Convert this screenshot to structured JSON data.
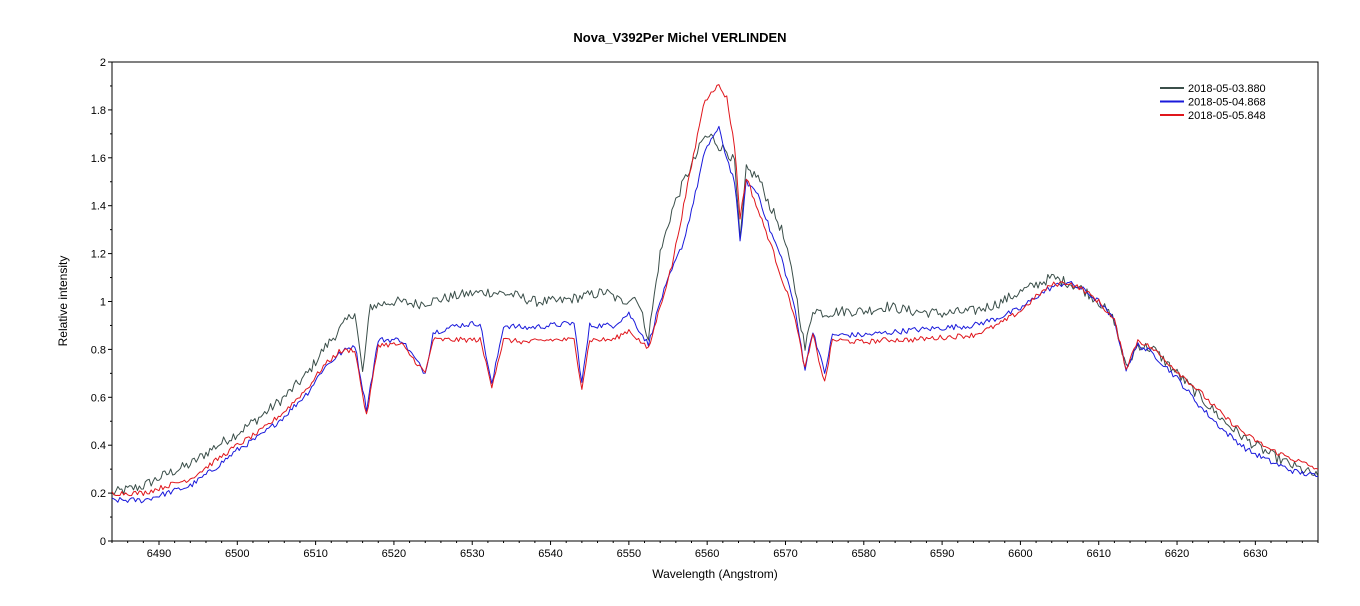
{
  "chart_data": {
    "type": "line",
    "title": "Nova_V392Per   Michel VERLINDEN",
    "xlabel": "Wavelength (Angstrom)",
    "ylabel": "Relative intensity",
    "xlim": [
      6484,
      6638
    ],
    "ylim": [
      0,
      2
    ],
    "xticks": [
      6490,
      6500,
      6510,
      6520,
      6530,
      6540,
      6550,
      6560,
      6570,
      6580,
      6590,
      6600,
      6610,
      6620,
      6630
    ],
    "xtick_labels": [
      "6490",
      "6500",
      "6510",
      "6520",
      "6530",
      "6540",
      "6550",
      "6560",
      "6570",
      "6580",
      "6590",
      "6600",
      "6610",
      "6620",
      "6630"
    ],
    "yticks": [
      0,
      0.2,
      0.4,
      0.6,
      0.8,
      1,
      1.2,
      1.4,
      1.6,
      1.8,
      2
    ],
    "ytick_labels": [
      "0",
      "0.2",
      "0.4",
      "0.6",
      "0.8",
      "1",
      "1.2",
      "1.4",
      "1.6",
      "1.8",
      "2"
    ],
    "grid": false,
    "legend_position": "top-right",
    "series": [
      {
        "name": "2018-05-03.880",
        "color": "#3b4f4a",
        "points": [
          [
            6484,
            0.2
          ],
          [
            6488,
            0.23
          ],
          [
            6491,
            0.28
          ],
          [
            6494,
            0.32
          ],
          [
            6497,
            0.39
          ],
          [
            6500,
            0.45
          ],
          [
            6503,
            0.52
          ],
          [
            6506,
            0.6
          ],
          [
            6509,
            0.7
          ],
          [
            6511,
            0.8
          ],
          [
            6513,
            0.88
          ],
          [
            6515,
            0.96
          ],
          [
            6516,
            0.7
          ],
          [
            6517,
            0.98
          ],
          [
            6520,
            1.0
          ],
          [
            6523,
            0.99
          ],
          [
            6526,
            1.01
          ],
          [
            6529,
            1.03
          ],
          [
            6532,
            1.04
          ],
          [
            6535,
            1.03
          ],
          [
            6538,
            1.0
          ],
          [
            6541,
            1.0
          ],
          [
            6544,
            1.02
          ],
          [
            6547,
            1.04
          ],
          [
            6549,
            1.0
          ],
          [
            6551,
            1.02
          ],
          [
            6552.5,
            0.85
          ],
          [
            6554,
            1.2
          ],
          [
            6555.5,
            1.38
          ],
          [
            6557,
            1.5
          ],
          [
            6558.5,
            1.6
          ],
          [
            6559.5,
            1.68
          ],
          [
            6560.5,
            1.69
          ],
          [
            6561.5,
            1.65
          ],
          [
            6562.5,
            1.63
          ],
          [
            6563.5,
            1.58
          ],
          [
            6564.2,
            1.25
          ],
          [
            6565,
            1.55
          ],
          [
            6566.5,
            1.52
          ],
          [
            6568,
            1.4
          ],
          [
            6569.5,
            1.3
          ],
          [
            6571,
            1.1
          ],
          [
            6572.5,
            0.8
          ],
          [
            6573.5,
            0.97
          ],
          [
            6575,
            0.95
          ],
          [
            6577,
            0.96
          ],
          [
            6580,
            0.96
          ],
          [
            6583,
            0.98
          ],
          [
            6586,
            0.96
          ],
          [
            6590,
            0.95
          ],
          [
            6594,
            0.96
          ],
          [
            6597,
            0.99
          ],
          [
            6600,
            1.04
          ],
          [
            6602,
            1.07
          ],
          [
            6604,
            1.1
          ],
          [
            6606,
            1.08
          ],
          [
            6608,
            1.05
          ],
          [
            6610,
            1.0
          ],
          [
            6612,
            0.92
          ],
          [
            6613.5,
            0.72
          ],
          [
            6615,
            0.82
          ],
          [
            6617,
            0.8
          ],
          [
            6620,
            0.7
          ],
          [
            6623,
            0.6
          ],
          [
            6626,
            0.5
          ],
          [
            6629,
            0.42
          ],
          [
            6632,
            0.36
          ],
          [
            6635,
            0.31
          ],
          [
            6638,
            0.27
          ]
        ]
      },
      {
        "name": "2018-05-04.868",
        "color": "#1a1adb",
        "points": [
          [
            6484,
            0.17
          ],
          [
            6488,
            0.17
          ],
          [
            6491,
            0.2
          ],
          [
            6494,
            0.23
          ],
          [
            6497,
            0.3
          ],
          [
            6500,
            0.38
          ],
          [
            6503,
            0.44
          ],
          [
            6506,
            0.52
          ],
          [
            6509,
            0.62
          ],
          [
            6511,
            0.72
          ],
          [
            6513,
            0.78
          ],
          [
            6515,
            0.82
          ],
          [
            6516.5,
            0.55
          ],
          [
            6518,
            0.84
          ],
          [
            6521,
            0.84
          ],
          [
            6524,
            0.7
          ],
          [
            6525,
            0.87
          ],
          [
            6528,
            0.9
          ],
          [
            6531,
            0.91
          ],
          [
            6532.5,
            0.65
          ],
          [
            6534,
            0.9
          ],
          [
            6537,
            0.89
          ],
          [
            6540,
            0.9
          ],
          [
            6543,
            0.91
          ],
          [
            6544,
            0.66
          ],
          [
            6545,
            0.9
          ],
          [
            6548,
            0.9
          ],
          [
            6550,
            0.95
          ],
          [
            6552.5,
            0.82
          ],
          [
            6554,
            1.0
          ],
          [
            6555.5,
            1.13
          ],
          [
            6557,
            1.25
          ],
          [
            6558.5,
            1.45
          ],
          [
            6559.5,
            1.6
          ],
          [
            6560.5,
            1.68
          ],
          [
            6561.5,
            1.72
          ],
          [
            6562.5,
            1.6
          ],
          [
            6563.5,
            1.5
          ],
          [
            6564.2,
            1.25
          ],
          [
            6565,
            1.5
          ],
          [
            6566.5,
            1.45
          ],
          [
            6568,
            1.3
          ],
          [
            6569.5,
            1.18
          ],
          [
            6571,
            1.0
          ],
          [
            6572.5,
            0.72
          ],
          [
            6573.5,
            0.88
          ],
          [
            6575,
            0.7
          ],
          [
            6576,
            0.86
          ],
          [
            6580,
            0.86
          ],
          [
            6583,
            0.87
          ],
          [
            6586,
            0.88
          ],
          [
            6590,
            0.89
          ],
          [
            6594,
            0.9
          ],
          [
            6597,
            0.93
          ],
          [
            6600,
            0.97
          ],
          [
            6602,
            1.02
          ],
          [
            6604,
            1.06
          ],
          [
            6606,
            1.08
          ],
          [
            6608,
            1.05
          ],
          [
            6610,
            1.0
          ],
          [
            6612,
            0.92
          ],
          [
            6613.5,
            0.72
          ],
          [
            6615,
            0.82
          ],
          [
            6617,
            0.78
          ],
          [
            6620,
            0.68
          ],
          [
            6623,
            0.56
          ],
          [
            6626,
            0.46
          ],
          [
            6629,
            0.38
          ],
          [
            6632,
            0.33
          ],
          [
            6635,
            0.29
          ],
          [
            6638,
            0.27
          ]
        ]
      },
      {
        "name": "2018-05-05.848",
        "color": "#e0161c",
        "points": [
          [
            6484,
            0.2
          ],
          [
            6488,
            0.2
          ],
          [
            6491,
            0.23
          ],
          [
            6494,
            0.26
          ],
          [
            6497,
            0.33
          ],
          [
            6500,
            0.4
          ],
          [
            6503,
            0.46
          ],
          [
            6506,
            0.54
          ],
          [
            6509,
            0.64
          ],
          [
            6511,
            0.73
          ],
          [
            6513,
            0.79
          ],
          [
            6515,
            0.8
          ],
          [
            6516.5,
            0.52
          ],
          [
            6518,
            0.82
          ],
          [
            6521,
            0.82
          ],
          [
            6524,
            0.7
          ],
          [
            6525,
            0.84
          ],
          [
            6528,
            0.84
          ],
          [
            6531,
            0.84
          ],
          [
            6532.5,
            0.65
          ],
          [
            6534,
            0.84
          ],
          [
            6537,
            0.83
          ],
          [
            6540,
            0.84
          ],
          [
            6543,
            0.84
          ],
          [
            6544,
            0.64
          ],
          [
            6545,
            0.84
          ],
          [
            6548,
            0.84
          ],
          [
            6550,
            0.88
          ],
          [
            6552.5,
            0.8
          ],
          [
            6554,
            0.98
          ],
          [
            6555.5,
            1.15
          ],
          [
            6557,
            1.4
          ],
          [
            6558.5,
            1.65
          ],
          [
            6559.5,
            1.82
          ],
          [
            6560.5,
            1.88
          ],
          [
            6561.5,
            1.9
          ],
          [
            6562.5,
            1.85
          ],
          [
            6563.5,
            1.65
          ],
          [
            6564.2,
            1.35
          ],
          [
            6565,
            1.52
          ],
          [
            6566.5,
            1.38
          ],
          [
            6568,
            1.25
          ],
          [
            6569.5,
            1.1
          ],
          [
            6571,
            0.96
          ],
          [
            6572.5,
            0.72
          ],
          [
            6573.5,
            0.86
          ],
          [
            6575,
            0.66
          ],
          [
            6576,
            0.84
          ],
          [
            6580,
            0.83
          ],
          [
            6583,
            0.84
          ],
          [
            6586,
            0.84
          ],
          [
            6590,
            0.85
          ],
          [
            6594,
            0.86
          ],
          [
            6597,
            0.9
          ],
          [
            6600,
            0.96
          ],
          [
            6602,
            1.02
          ],
          [
            6604,
            1.07
          ],
          [
            6606,
            1.08
          ],
          [
            6608,
            1.05
          ],
          [
            6610,
            1.0
          ],
          [
            6612,
            0.92
          ],
          [
            6613.5,
            0.72
          ],
          [
            6615,
            0.84
          ],
          [
            6617,
            0.8
          ],
          [
            6620,
            0.71
          ],
          [
            6623,
            0.62
          ],
          [
            6626,
            0.52
          ],
          [
            6629,
            0.44
          ],
          [
            6632,
            0.38
          ],
          [
            6635,
            0.34
          ],
          [
            6638,
            0.3
          ]
        ]
      }
    ]
  }
}
